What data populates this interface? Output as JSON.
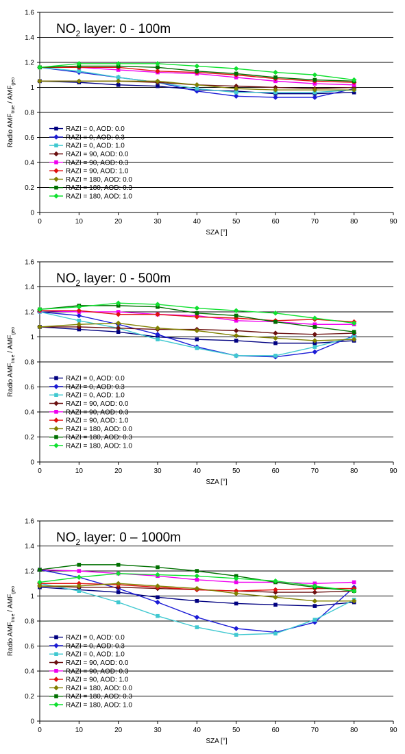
{
  "chart_data": [
    {
      "type": "line",
      "title": {
        "prefix": "NO",
        "sub": "2",
        "suffix": " layer: 0 - 100m"
      },
      "xlabel": "SZA [°]",
      "ylabel": {
        "t1": "Radio AMF",
        "s1": "true",
        "t2": " / AMF",
        "s2": "geo"
      },
      "xlim": [
        0,
        90
      ],
      "ylim": [
        0,
        1.6
      ],
      "xticks": [
        "0",
        "10",
        "20",
        "30",
        "40",
        "50",
        "60",
        "70",
        "80",
        "90"
      ],
      "yticks": [
        "0",
        "0.2",
        "0.4",
        "0.6",
        "0.8",
        "1",
        "1.2",
        "1.4",
        "1.6"
      ],
      "grid": "horizontal",
      "legend_placement": "lower-left",
      "x": [
        0,
        10,
        20,
        30,
        40,
        50,
        60,
        70,
        80
      ],
      "series": [
        {
          "name": "RAZI = 0,    AOD: 0.0",
          "color": "#000080",
          "marker": "square",
          "values": [
            1.05,
            1.04,
            1.02,
            1.01,
            0.98,
            0.97,
            0.95,
            0.95,
            0.96
          ]
        },
        {
          "name": "RAZI = 0,    AOD: 0.3",
          "color": "#1c1cd6",
          "marker": "diamond",
          "values": [
            1.16,
            1.12,
            1.08,
            1.04,
            0.97,
            0.93,
            0.92,
            0.92,
            0.99
          ]
        },
        {
          "name": "RAZI = 0,    AOD: 1.0",
          "color": "#40c8d0",
          "marker": "square",
          "values": [
            1.16,
            1.13,
            1.08,
            1.04,
            0.99,
            0.96,
            0.96,
            0.96,
            0.98
          ]
        },
        {
          "name": "RAZI = 90,   AOD: 0.0",
          "color": "#6b1010",
          "marker": "diamond",
          "values": [
            1.05,
            1.05,
            1.05,
            1.04,
            1.02,
            1.01,
            1.0,
            0.99,
            1.0
          ]
        },
        {
          "name": "RAZI = 90,   AOD: 0.3",
          "color": "#f000f0",
          "marker": "square",
          "values": [
            1.16,
            1.16,
            1.14,
            1.12,
            1.11,
            1.08,
            1.05,
            1.03,
            1.02
          ]
        },
        {
          "name": "RAZI = 90,   AOD: 1.0",
          "color": "#e01010",
          "marker": "diamond",
          "values": [
            1.16,
            1.16,
            1.16,
            1.13,
            1.12,
            1.1,
            1.07,
            1.05,
            1.04
          ]
        },
        {
          "name": "RAZI = 180, AOD: 0.0",
          "color": "#808000",
          "marker": "diamond",
          "values": [
            1.05,
            1.05,
            1.05,
            1.05,
            1.02,
            0.99,
            0.98,
            0.98,
            0.98
          ]
        },
        {
          "name": "RAZI = 180, AOD: 0.3",
          "color": "#007000",
          "marker": "square",
          "values": [
            1.16,
            1.17,
            1.17,
            1.16,
            1.13,
            1.11,
            1.08,
            1.06,
            1.05
          ]
        },
        {
          "name": "RAZI = 180, AOD: 1.0",
          "color": "#10e030",
          "marker": "diamond",
          "values": [
            1.16,
            1.19,
            1.19,
            1.19,
            1.17,
            1.15,
            1.12,
            1.1,
            1.06
          ]
        }
      ]
    },
    {
      "type": "line",
      "title": {
        "prefix": "NO",
        "sub": "2",
        "suffix": " layer: 0 - 500m"
      },
      "xlabel": "SZA [°]",
      "ylabel": {
        "t1": "Radio AMF",
        "s1": "true",
        "t2": " / AMF",
        "s2": "geo"
      },
      "xlim": [
        0,
        90
      ],
      "ylim": [
        0,
        1.6
      ],
      "xticks": [
        "0",
        "10",
        "20",
        "30",
        "40",
        "50",
        "60",
        "70",
        "80",
        "90"
      ],
      "yticks": [
        "0",
        "0.2",
        "0.4",
        "0.6",
        "0.8",
        "1",
        "1.2",
        "1.4",
        "1.6"
      ],
      "grid": "horizontal",
      "legend_placement": "lower-left",
      "x": [
        0,
        10,
        20,
        30,
        40,
        50,
        60,
        70,
        80
      ],
      "series": [
        {
          "name": "RAZI = 0,    AOD: 0.0",
          "color": "#000080",
          "marker": "square",
          "values": [
            1.08,
            1.06,
            1.04,
            1.0,
            0.98,
            0.97,
            0.95,
            0.95,
            0.97
          ]
        },
        {
          "name": "RAZI = 0,    AOD: 0.3",
          "color": "#1c1cd6",
          "marker": "diamond",
          "values": [
            1.2,
            1.17,
            1.1,
            1.02,
            0.92,
            0.85,
            0.84,
            0.88,
            1.01
          ]
        },
        {
          "name": "RAZI = 0,    AOD: 1.0",
          "color": "#40c8d0",
          "marker": "square",
          "values": [
            1.2,
            1.13,
            1.07,
            0.98,
            0.91,
            0.85,
            0.85,
            0.92,
            1.0
          ]
        },
        {
          "name": "RAZI = 90,   AOD: 0.0",
          "color": "#6b1010",
          "marker": "diamond",
          "values": [
            1.08,
            1.08,
            1.07,
            1.06,
            1.06,
            1.05,
            1.03,
            1.02,
            1.03
          ]
        },
        {
          "name": "RAZI = 90,   AOD: 0.3",
          "color": "#f000f0",
          "marker": "square",
          "values": [
            1.21,
            1.2,
            1.2,
            1.18,
            1.17,
            1.13,
            1.12,
            1.1,
            1.1
          ]
        },
        {
          "name": "RAZI = 90,   AOD: 1.0",
          "color": "#e01010",
          "marker": "diamond",
          "values": [
            1.21,
            1.21,
            1.18,
            1.18,
            1.16,
            1.15,
            1.13,
            1.14,
            1.12
          ]
        },
        {
          "name": "RAZI = 180, AOD: 0.0",
          "color": "#808000",
          "marker": "diamond",
          "values": [
            1.08,
            1.1,
            1.11,
            1.07,
            1.05,
            1.01,
            0.99,
            0.97,
            0.98
          ]
        },
        {
          "name": "RAZI = 180, AOD: 0.3",
          "color": "#007000",
          "marker": "square",
          "values": [
            1.22,
            1.25,
            1.25,
            1.24,
            1.19,
            1.17,
            1.12,
            1.08,
            1.04
          ]
        },
        {
          "name": "RAZI = 180, AOD: 1.0",
          "color": "#10e030",
          "marker": "diamond",
          "values": [
            1.22,
            1.24,
            1.27,
            1.26,
            1.23,
            1.21,
            1.19,
            1.15,
            1.11
          ]
        }
      ]
    },
    {
      "type": "line",
      "title": {
        "prefix": "NO",
        "sub": "2",
        "suffix": " layer: 0 – 1000m"
      },
      "xlabel": "SZA [°]",
      "ylabel": {
        "t1": "Radio AMF",
        "s1": "true",
        "t2": " / AMF",
        "s2": "geo"
      },
      "xlim": [
        0,
        90
      ],
      "ylim": [
        0,
        1.6
      ],
      "xticks": [
        "0",
        "10",
        "20",
        "30",
        "40",
        "50",
        "60",
        "70",
        "80",
        "90"
      ],
      "yticks": [
        "0",
        "0.2",
        "0.4",
        "0.6",
        "0.8",
        "1",
        "1.2",
        "1.4",
        "1.6"
      ],
      "grid": "horizontal",
      "legend_placement": "lower-left",
      "x": [
        0,
        10,
        20,
        30,
        40,
        50,
        60,
        70,
        80
      ],
      "series": [
        {
          "name": "RAZI = 0,    AOD: 0.0",
          "color": "#000080",
          "marker": "square",
          "values": [
            1.07,
            1.05,
            1.03,
            0.99,
            0.96,
            0.94,
            0.93,
            0.92,
            0.95
          ]
        },
        {
          "name": "RAZI = 0,    AOD: 0.3",
          "color": "#1c1cd6",
          "marker": "diamond",
          "values": [
            1.21,
            1.15,
            1.06,
            0.95,
            0.83,
            0.74,
            0.71,
            0.79,
            1.07
          ]
        },
        {
          "name": "RAZI = 0,    AOD: 1.0",
          "color": "#40c8d0",
          "marker": "square",
          "values": [
            1.1,
            1.04,
            0.95,
            0.84,
            0.75,
            0.69,
            0.7,
            0.81,
            0.97
          ]
        },
        {
          "name": "RAZI = 90,   AOD: 0.0",
          "color": "#6b1010",
          "marker": "diamond",
          "values": [
            1.08,
            1.07,
            1.07,
            1.06,
            1.05,
            1.04,
            1.03,
            1.03,
            1.04
          ]
        },
        {
          "name": "RAZI = 90,   AOD: 0.3",
          "color": "#f000f0",
          "marker": "square",
          "values": [
            1.21,
            1.2,
            1.18,
            1.16,
            1.13,
            1.11,
            1.11,
            1.1,
            1.11
          ]
        },
        {
          "name": "RAZI = 90,   AOD: 1.0",
          "color": "#e01010",
          "marker": "diamond",
          "values": [
            1.1,
            1.1,
            1.09,
            1.07,
            1.05,
            1.04,
            1.05,
            1.06,
            1.06
          ]
        },
        {
          "name": "RAZI = 180, AOD: 0.0",
          "color": "#808000",
          "marker": "diamond",
          "values": [
            1.08,
            1.08,
            1.1,
            1.08,
            1.06,
            1.02,
            0.99,
            0.96,
            0.96
          ]
        },
        {
          "name": "RAZI = 180, AOD: 0.3",
          "color": "#007000",
          "marker": "square",
          "values": [
            1.21,
            1.25,
            1.25,
            1.23,
            1.2,
            1.16,
            1.11,
            1.07,
            1.04
          ]
        },
        {
          "name": "RAZI = 180, AOD: 1.0",
          "color": "#10e030",
          "marker": "diamond",
          "values": [
            1.11,
            1.15,
            1.18,
            1.17,
            1.16,
            1.14,
            1.12,
            1.08,
            1.04
          ]
        }
      ]
    }
  ]
}
